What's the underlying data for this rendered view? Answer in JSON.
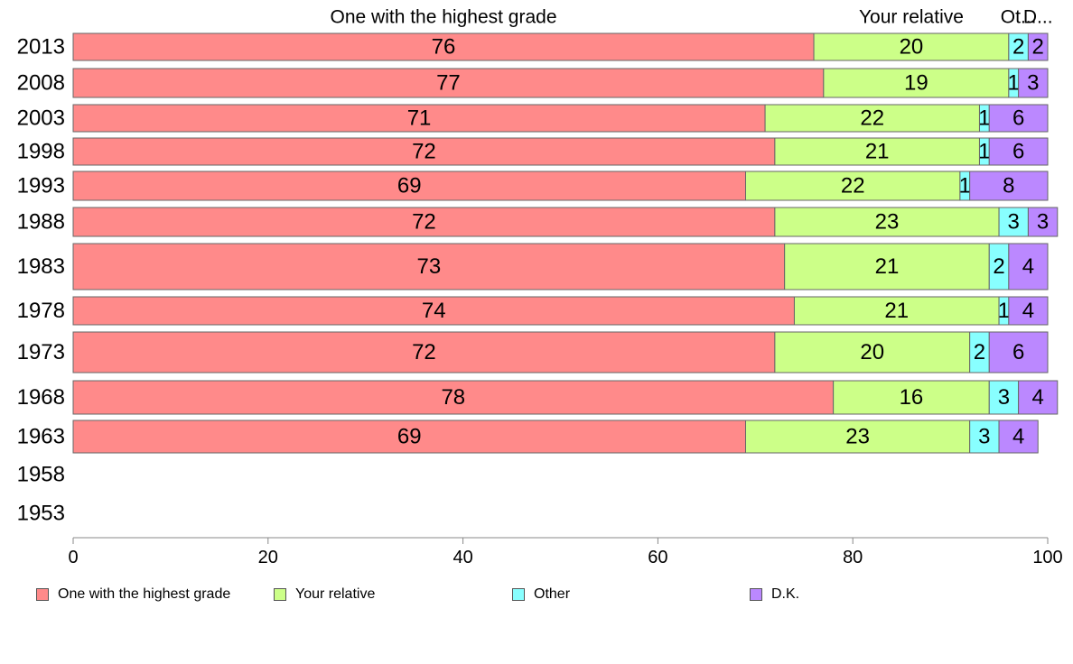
{
  "chart_data": {
    "type": "bar",
    "orientation": "horizontal",
    "stacked": true,
    "title": "",
    "xlabel": "",
    "ylabel": "",
    "xlim": [
      0,
      100
    ],
    "xticks": [
      0,
      20,
      40,
      60,
      80,
      100
    ],
    "grid": false,
    "legend_position": "bottom",
    "categories": [
      "2013",
      "2008",
      "2003",
      "1998",
      "1993",
      "1988",
      "1983",
      "1978",
      "1973",
      "1968",
      "1963",
      "1958",
      "1953"
    ],
    "column_headers": [
      "One with the highest grade",
      "Your relative",
      "Ot...",
      "D..."
    ],
    "series": [
      {
        "name": "One with the highest grade",
        "color": "#ff8a8a",
        "values": [
          76,
          77,
          71,
          72,
          69,
          72,
          73,
          74,
          72,
          78,
          69,
          null,
          null
        ]
      },
      {
        "name": "Your relative",
        "color": "#ccff88",
        "values": [
          20,
          19,
          22,
          21,
          22,
          23,
          21,
          21,
          20,
          16,
          23,
          null,
          null
        ]
      },
      {
        "name": "Other",
        "color": "#88ffff",
        "values": [
          2,
          1,
          1,
          1,
          1,
          3,
          2,
          1,
          2,
          3,
          3,
          null,
          null
        ]
      },
      {
        "name": "D.K.",
        "color": "#bb88ff",
        "values": [
          2,
          3,
          6,
          6,
          8,
          3,
          4,
          4,
          6,
          4,
          4,
          null,
          null
        ]
      }
    ]
  }
}
